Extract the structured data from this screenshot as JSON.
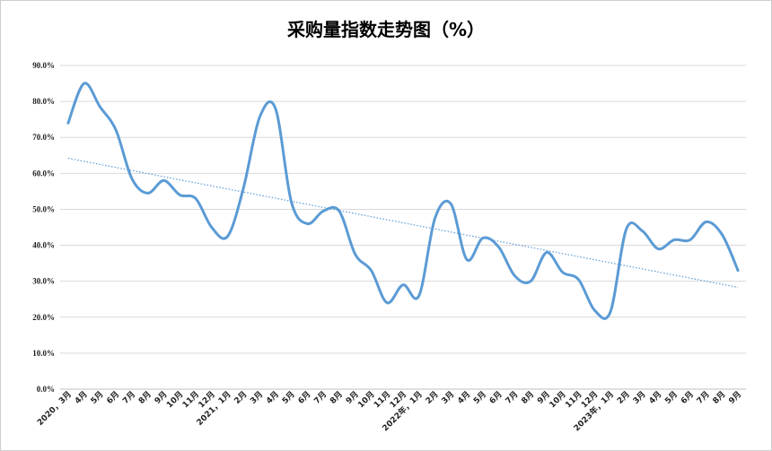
{
  "chart_data": {
    "type": "line",
    "title": "采购量指数走势图（%）",
    "xlabel": "",
    "ylabel": "",
    "ylim": [
      0,
      90
    ],
    "y_ticks": [
      "0.0%",
      "10.0%",
      "20.0%",
      "30.0%",
      "40.0%",
      "50.0%",
      "60.0%",
      "70.0%",
      "80.0%",
      "90.0%"
    ],
    "grid": true,
    "categories": [
      "2020，3月",
      "4月",
      "5月",
      "6月",
      "7月",
      "8月",
      "9月",
      "10月",
      "11月",
      "12月",
      "2021，1月",
      "2月",
      "3月",
      "4月",
      "5月",
      "6月",
      "7月",
      "8月",
      "9月",
      "10月",
      "11月",
      "12月",
      "2022年，1月",
      "2月",
      "3月",
      "4月",
      "5月",
      "6月",
      "7月",
      "8月",
      "9月",
      "10月",
      "11月",
      "12月",
      "2023年，1月",
      "2月",
      "3月",
      "4月",
      "5月",
      "6月",
      "7月",
      "8月",
      "9月"
    ],
    "series": [
      {
        "values": [
          74.0,
          85.0,
          78.5,
          72.0,
          58.5,
          54.5,
          58.0,
          54.0,
          53.0,
          45.0,
          42.5,
          56.0,
          75.5,
          78.0,
          52.0,
          46.0,
          49.5,
          49.5,
          37.5,
          33.0,
          24.0,
          29.0,
          26.0,
          47.5,
          51.5,
          36.0,
          42.0,
          39.5,
          31.5,
          30.0,
          38.0,
          32.5,
          30.5,
          22.0,
          21.5,
          44.5,
          44.0,
          39.0,
          41.5,
          41.5,
          46.5,
          43.0,
          33.0
        ],
        "color": "#5b9bd5"
      }
    ],
    "trendline": {
      "start": 64.2,
      "end": 28.3,
      "color": "#5b9bd5",
      "style": "dotted"
    }
  }
}
